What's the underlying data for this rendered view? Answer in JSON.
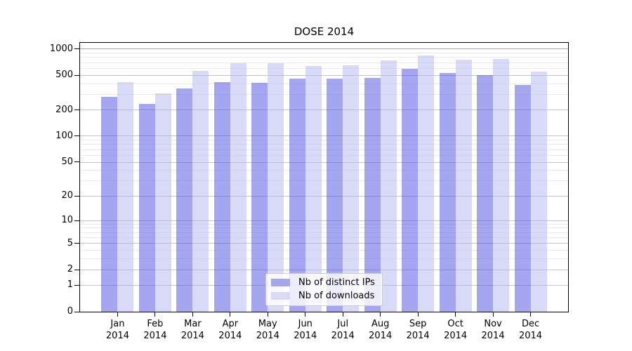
{
  "chart_data": {
    "type": "bar",
    "title": "DOSE 2014",
    "categories": [
      "Jan",
      "Feb",
      "Mar",
      "Apr",
      "May",
      "Jun",
      "Jul",
      "Aug",
      "Sep",
      "Oct",
      "Nov",
      "Dec"
    ],
    "year_label": "2014",
    "series": [
      {
        "name": "Nb of distinct IPs",
        "color": "#a5a5f0",
        "fill": "rgba(75,75,226,0.5)",
        "values": [
          285,
          235,
          355,
          420,
          410,
          460,
          455,
          470,
          590,
          530,
          500,
          390
        ]
      },
      {
        "name": "Nb of downloads",
        "color": "#d9d9f8",
        "fill": "rgba(180,180,242,0.5)",
        "values": [
          420,
          310,
          565,
          690,
          690,
          645,
          650,
          740,
          850,
          755,
          775,
          555
        ]
      }
    ],
    "y_axis": {
      "scale": "log1p",
      "ticks": [
        0,
        1,
        2,
        5,
        10,
        20,
        50,
        100,
        200,
        500,
        1000
      ],
      "minor_ticks": [
        3,
        4,
        6,
        7,
        8,
        9,
        30,
        40,
        60,
        70,
        80,
        90,
        300,
        400,
        600,
        700,
        800,
        900
      ],
      "top_value": 1175
    },
    "xlabel": "",
    "ylabel": "",
    "grid": true,
    "legend": {
      "position": "lower center",
      "entries": [
        "Nb of distinct IPs",
        "Nb of downloads"
      ]
    }
  },
  "colors": {
    "background": "#ffffff",
    "spine": "#000000",
    "grid_major": "#c3c3c3",
    "grid_minor": "#eaeaea",
    "grid_top": "#a9a9a9",
    "bar_dark": "#a5a5f0",
    "bar_light": "#d9d9f8"
  }
}
